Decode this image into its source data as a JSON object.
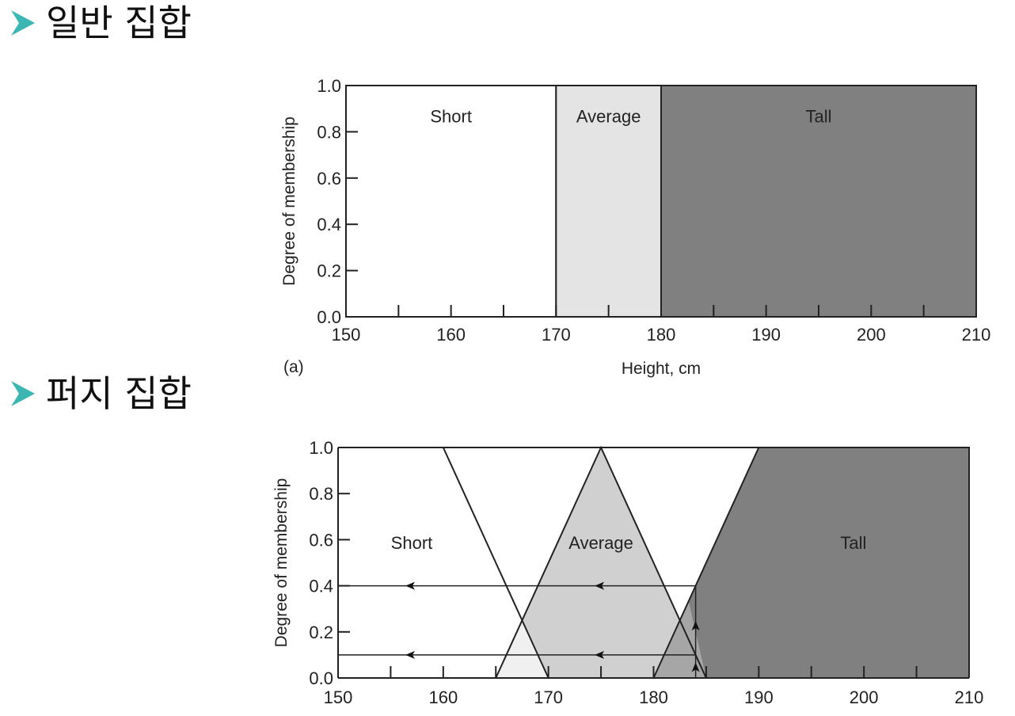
{
  "headings": {
    "crisp": "일반 집합",
    "fuzzy": "퍼지 집합"
  },
  "colors": {
    "bullet": "#3bb6b3",
    "short": "#ffffff",
    "average_crisp": "#e4e4e4",
    "tall": "#808080",
    "average_fuzzy": "#d0d0d0",
    "overlap_light": "#f0f0f0",
    "overlap_mid": "#a6a6a6"
  },
  "chart_data": [
    {
      "type": "area",
      "panel_label": "(a)",
      "xlabel": "Height, cm",
      "ylabel": "Degree of membership",
      "xlim": [
        150,
        210
      ],
      "ylim": [
        0,
        1
      ],
      "xticks": [
        150,
        160,
        170,
        180,
        190,
        200,
        210
      ],
      "xticks_labels": [
        "150",
        "160",
        "170",
        "180",
        "190",
        "200",
        "210"
      ],
      "yticks": [
        0.0,
        0.2,
        0.4,
        0.6,
        0.8,
        1.0
      ],
      "yticks_labels": [
        "0.0",
        "0.2",
        "0.4",
        "0.6",
        "0.8",
        "1.0"
      ],
      "series": [
        {
          "name": "Short",
          "x": [
            150,
            170
          ],
          "y": [
            1,
            1
          ]
        },
        {
          "name": "Average",
          "x": [
            170,
            180
          ],
          "y": [
            1,
            1
          ]
        },
        {
          "name": "Tall",
          "x": [
            180,
            210
          ],
          "y": [
            1,
            1
          ]
        }
      ]
    },
    {
      "type": "area",
      "xlabel": "",
      "ylabel": "Degree of membership",
      "xlim": [
        150,
        210
      ],
      "ylim": [
        0,
        1
      ],
      "xticks": [
        150,
        160,
        170,
        180,
        190,
        200,
        210
      ],
      "xticks_labels": [
        "150",
        "160",
        "170",
        "180",
        "190",
        "200",
        "210"
      ],
      "yticks": [
        0.0,
        0.2,
        0.4,
        0.6,
        0.8,
        1.0
      ],
      "yticks_labels": [
        "0.0",
        "0.2",
        "0.4",
        "0.6",
        "0.8",
        "1.0"
      ],
      "series": [
        {
          "name": "Short",
          "x": [
            150,
            160,
            170
          ],
          "y": [
            1,
            1,
            0
          ]
        },
        {
          "name": "Average",
          "x": [
            165,
            175,
            185
          ],
          "y": [
            0,
            1,
            0
          ]
        },
        {
          "name": "Tall",
          "x": [
            180,
            190,
            210
          ],
          "y": [
            0,
            1,
            1
          ]
        }
      ],
      "annotations": {
        "sample_height": 184,
        "memberships": [
          0.4,
          0.1
        ]
      }
    }
  ]
}
